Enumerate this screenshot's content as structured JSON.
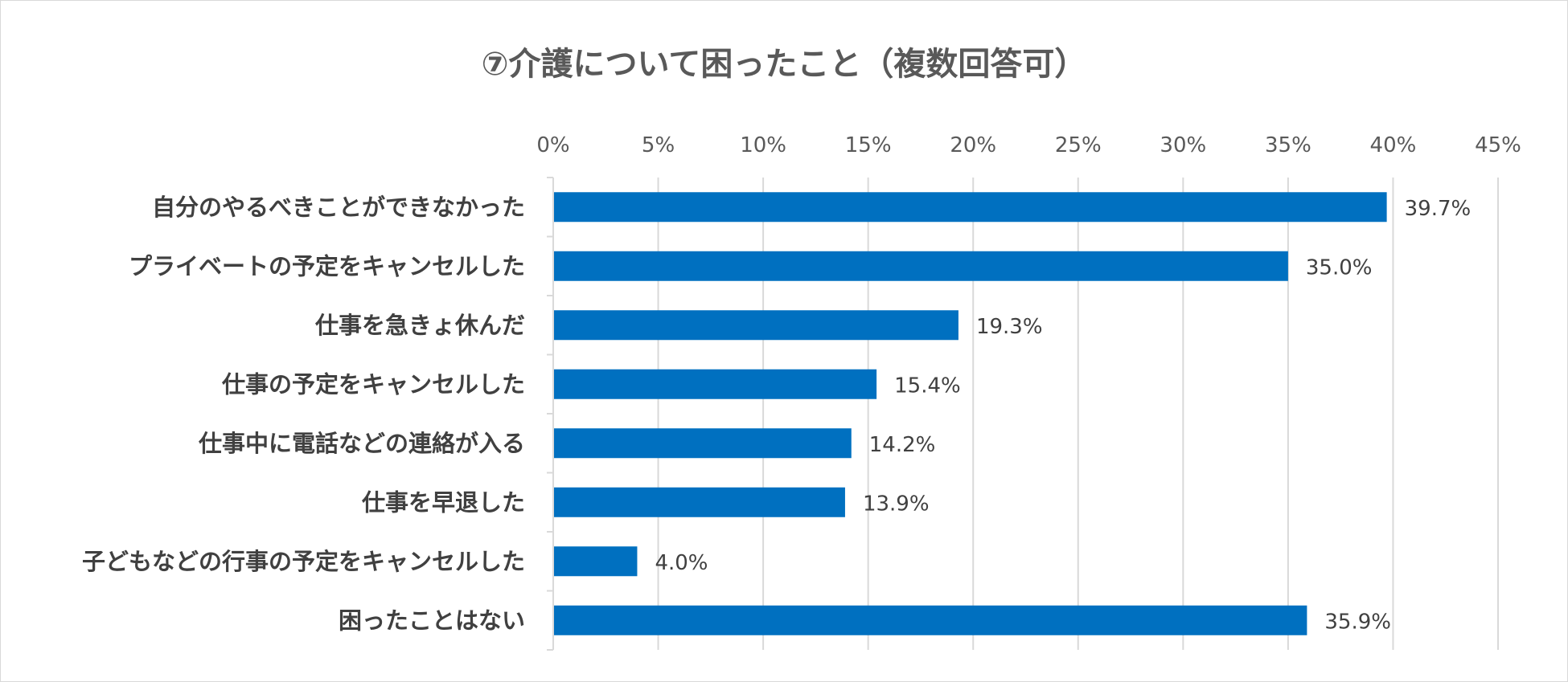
{
  "chart_data": {
    "type": "bar",
    "orientation": "horizontal",
    "title": "⑦介護について困ったこと（複数回答可）",
    "xlabel": "",
    "ylabel": "",
    "xlim": [
      0,
      45
    ],
    "x_tick_values": [
      0,
      5,
      10,
      15,
      20,
      25,
      30,
      35,
      40,
      45
    ],
    "x_tick_labels": [
      "0%",
      "5%",
      "10%",
      "15%",
      "20%",
      "25%",
      "30%",
      "35%",
      "40%",
      "45%"
    ],
    "x_axis_position": "top",
    "grid": true,
    "legend": "none",
    "bar_color": "#0070C0",
    "categories": [
      "自分のやるべきことができなかった",
      "プライベートの予定をキャンセルした",
      "仕事を急きょ休んだ",
      "仕事の予定をキャンセルした",
      "仕事中に電話などの連絡が入る",
      "仕事を早退した",
      "子どもなどの行事の予定をキャンセルした",
      "困ったことはない"
    ],
    "values": [
      39.7,
      35.0,
      19.3,
      15.4,
      14.2,
      13.9,
      4.0,
      35.9
    ],
    "data_labels": [
      "39.7%",
      "35.0%",
      "19.3%",
      "15.4%",
      "14.2%",
      "13.9%",
      "4.0%",
      "35.9%"
    ]
  }
}
